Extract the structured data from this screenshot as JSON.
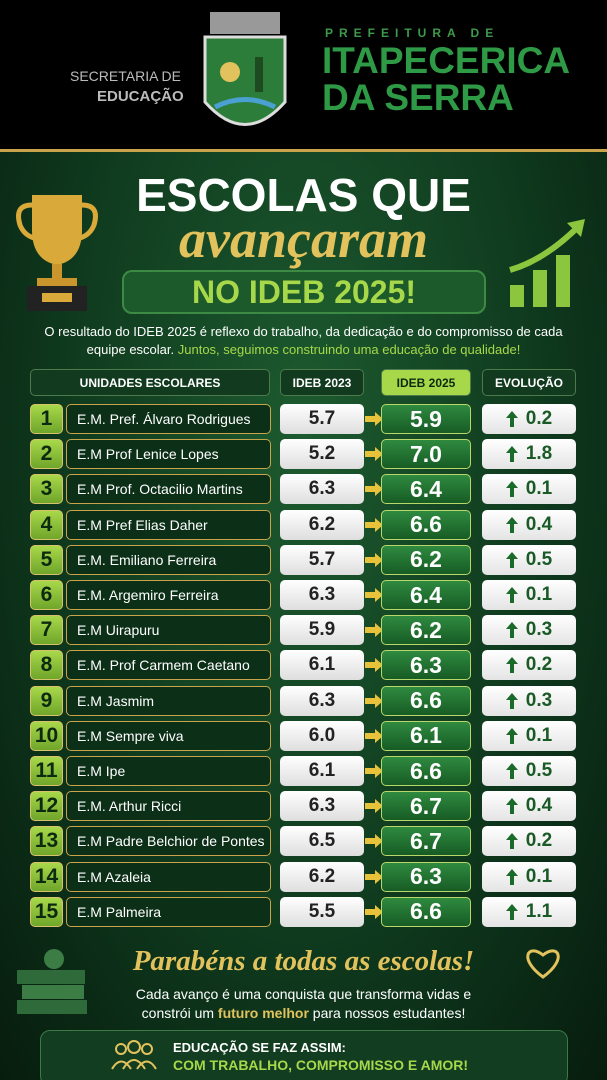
{
  "header": {
    "secretaria": "SECRETARIA DE",
    "educacao": "EDUCAÇÃO",
    "prefeitura": "PREFEITURA DE",
    "city_line1": "ITAPECERICA",
    "city_line2": "DA SERRA"
  },
  "title": {
    "line1": "ESCOLAS QUE",
    "line2": "avançaram",
    "line3": "NO IDEB 2025!"
  },
  "intro": {
    "text": "O resultado do IDEB 2025 é reflexo do trabalho, da dedicação e do compromisso de cada equipe escolar.",
    "highlight": "Juntos, seguimos construindo uma educação de qualidade!"
  },
  "table": {
    "columns": [
      "UNIDADES ESCOLARES",
      "IDEB 2023",
      "IDEB 2025",
      "EVOLUÇÃO"
    ],
    "rows": [
      [
        "1",
        "E.M. Pref. Álvaro Rodrigues",
        "5.7",
        "5.9",
        "0.2"
      ],
      [
        "2",
        "E.M Prof Lenice Lopes",
        "5.2",
        "7.0",
        "1.8"
      ],
      [
        "3",
        "E.M Prof. Octacilio Martins",
        "6.3",
        "6.4",
        "0.1"
      ],
      [
        "4",
        "E.M Pref Elias Daher",
        "6.2",
        "6.6",
        "0.4"
      ],
      [
        "5",
        "E.M. Emiliano Ferreira",
        "5.7",
        "6.2",
        "0.5"
      ],
      [
        "6",
        "E.M. Argemiro Ferreira",
        "6.3",
        "6.4",
        "0.1"
      ],
      [
        "7",
        "E.M Uirapuru",
        "5.9",
        "6.2",
        "0.3"
      ],
      [
        "8",
        "E.M. Prof Carmem Caetano",
        "6.1",
        "6.3",
        "0.2"
      ],
      [
        "9",
        "E.M Jasmim",
        "6.3",
        "6.6",
        "0.3"
      ],
      [
        "10",
        "E.M Sempre viva",
        "6.0",
        "6.1",
        "0.1"
      ],
      [
        "11",
        "E.M Ipe",
        "6.1",
        "6.6",
        "0.5"
      ],
      [
        "12",
        "E.M. Arthur Ricci",
        "6.3",
        "6.7",
        "0.4"
      ],
      [
        "13",
        "E.M Padre Belchior de Pontes",
        "6.5",
        "6.7",
        "0.2"
      ],
      [
        "14",
        "E.M Azaleia",
        "6.2",
        "6.3",
        "0.1"
      ],
      [
        "15",
        "E.M Palmeira",
        "5.5",
        "6.6",
        "1.1"
      ]
    ]
  },
  "footer": {
    "congrats": "Parabéns a todas as escolas!",
    "message_start": "Cada avanço é uma conquista que transforma vidas e constrói um",
    "message_highlight": "futuro melhor",
    "message_end": "para nossos estudantes!",
    "banner_line1": "EDUCAÇÃO SE FAZ ASSIM:",
    "banner_line2": "COM TRABALHO, COMPROMISSO E AMOR!"
  }
}
